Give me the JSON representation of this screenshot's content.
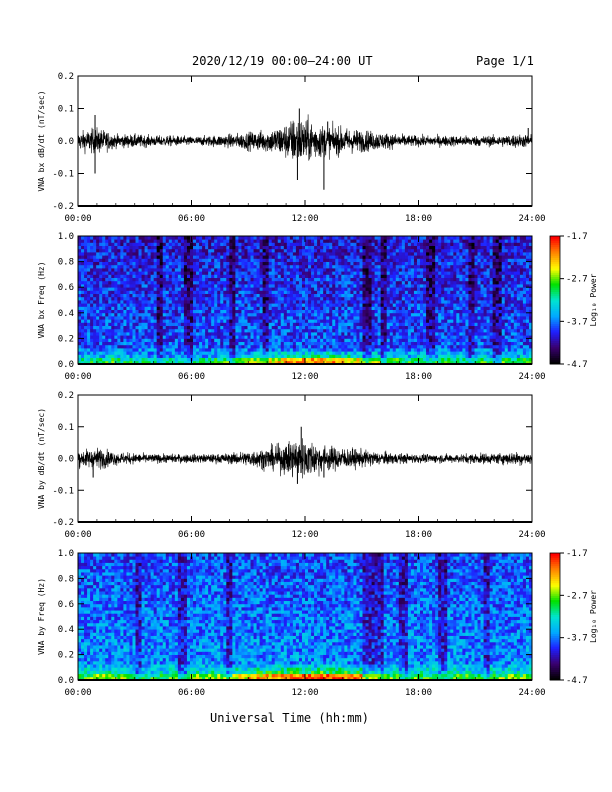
{
  "header": {
    "title": "2020/12/19  00:00–24:00 UT",
    "page": "Page 1/1"
  },
  "footer": {
    "xlabel": "Universal Time (hh:mm)"
  },
  "colors": {
    "trace": "#000000",
    "colormap": [
      "#000000",
      "#3a0070",
      "#1f1fff",
      "#00aaff",
      "#00e5d0",
      "#00e000",
      "#ffff00",
      "#ff8800",
      "#ff0000"
    ]
  },
  "chart_data": [
    {
      "type": "line",
      "name": "bx-waveform",
      "ylabel": "VNA bx dB/dt (nT/sec)",
      "xlim": [
        0,
        24
      ],
      "ylim": [
        -0.2,
        0.2
      ],
      "xticks": [
        "00:00",
        "06:00",
        "12:00",
        "18:00",
        "24:00"
      ],
      "yticks": [
        "-0.2",
        "-0.1",
        "0.0",
        "0.1",
        "0.2"
      ],
      "envelope_x_hours": [
        0,
        1,
        2,
        3,
        4,
        5,
        6,
        7,
        8,
        9,
        10,
        11,
        11.5,
        12,
        12.5,
        13,
        14,
        15,
        16,
        17,
        18,
        19,
        20,
        21,
        22,
        23,
        24
      ],
      "envelope_amplitude": [
        0.02,
        0.03,
        0.015,
        0.015,
        0.012,
        0.012,
        0.01,
        0.012,
        0.015,
        0.02,
        0.025,
        0.04,
        0.055,
        0.05,
        0.045,
        0.035,
        0.03,
        0.025,
        0.02,
        0.015,
        0.012,
        0.012,
        0.012,
        0.012,
        0.012,
        0.015,
        0.015
      ],
      "spikes": [
        {
          "x": 0.9,
          "y": 0.08
        },
        {
          "x": 0.9,
          "y": -0.1
        },
        {
          "x": 11.7,
          "y": 0.1
        },
        {
          "x": 11.6,
          "y": -0.12
        },
        {
          "x": 13.0,
          "y": -0.15
        },
        {
          "x": 13.2,
          "y": 0.06
        },
        {
          "x": 23.8,
          "y": 0.04
        }
      ]
    },
    {
      "type": "heatmap",
      "name": "bx-spectrogram",
      "ylabel": "VNA bx Freq (Hz)",
      "xlim": [
        0,
        24
      ],
      "ylim": [
        0.0,
        1.0
      ],
      "xticks": [
        "00:00",
        "06:00",
        "12:00",
        "18:00",
        "24:00"
      ],
      "yticks": [
        "0.0",
        "0.2",
        "0.4",
        "0.6",
        "0.8",
        "1.0"
      ],
      "colorbar": {
        "label": "Log₁₀ Power",
        "ticks": [
          "-1.7",
          "-2.7",
          "-3.7",
          "-4.7"
        ],
        "range": [
          -4.7,
          -1.7
        ]
      },
      "low_freq_power_by_hour": [
        -3.3,
        -3.2,
        -3.3,
        -3.4,
        -3.4,
        -3.4,
        -3.4,
        -3.2,
        -3.0,
        -2.8,
        -2.6,
        -2.4,
        -2.3,
        -2.4,
        -2.6,
        -2.8,
        -3.1,
        -3.2,
        -3.2,
        -3.2,
        -3.2,
        -3.2,
        -3.2,
        -3.2,
        -3.2
      ],
      "background_power": -3.8,
      "dark_bands_hours": [
        [
          4.1,
          4.5
        ],
        [
          5.6,
          6.0
        ],
        [
          8.0,
          8.3
        ],
        [
          9.8,
          10.1
        ],
        [
          15.0,
          15.6
        ],
        [
          16.0,
          16.3
        ],
        [
          18.4,
          18.8
        ],
        [
          20.6,
          21.0
        ],
        [
          22.0,
          22.4
        ]
      ]
    },
    {
      "type": "line",
      "name": "by-waveform",
      "ylabel": "VNA by dB/dt (nT/sec)",
      "xlim": [
        0,
        24
      ],
      "ylim": [
        -0.2,
        0.2
      ],
      "xticks": [
        "00:00",
        "06:00",
        "12:00",
        "18:00",
        "24:00"
      ],
      "yticks": [
        "-0.2",
        "-0.1",
        "0.0",
        "0.1",
        "0.2"
      ],
      "envelope_x_hours": [
        0,
        1,
        2,
        3,
        4,
        5,
        6,
        7,
        8,
        9,
        10,
        11,
        11.5,
        12,
        12.5,
        13,
        14,
        15,
        16,
        17,
        18,
        19,
        20,
        21,
        22,
        23,
        24
      ],
      "envelope_amplitude": [
        0.018,
        0.025,
        0.015,
        0.012,
        0.01,
        0.01,
        0.01,
        0.01,
        0.012,
        0.018,
        0.025,
        0.035,
        0.05,
        0.045,
        0.04,
        0.03,
        0.025,
        0.02,
        0.015,
        0.012,
        0.01,
        0.01,
        0.01,
        0.012,
        0.012,
        0.015,
        0.015
      ],
      "spikes": [
        {
          "x": 0.8,
          "y": -0.06
        },
        {
          "x": 11.8,
          "y": 0.1
        },
        {
          "x": 11.6,
          "y": -0.08
        },
        {
          "x": 13.0,
          "y": -0.06
        }
      ]
    },
    {
      "type": "heatmap",
      "name": "by-spectrogram",
      "ylabel": "VNA by Freq (Hz)",
      "xlim": [
        0,
        24
      ],
      "ylim": [
        0.0,
        1.0
      ],
      "xticks": [
        "00:00",
        "06:00",
        "12:00",
        "18:00",
        "24:00"
      ],
      "yticks": [
        "0.0",
        "0.2",
        "0.4",
        "0.6",
        "0.8",
        "1.0"
      ],
      "colorbar": {
        "label": "Log₁₀ Power",
        "ticks": [
          "-1.7",
          "-2.7",
          "-3.7",
          "-4.7"
        ],
        "range": [
          -4.7,
          -1.7
        ]
      },
      "low_freq_power_by_hour": [
        -3.0,
        -2.9,
        -3.0,
        -3.2,
        -3.2,
        -3.1,
        -3.0,
        -2.9,
        -2.7,
        -2.5,
        -2.4,
        -2.2,
        -2.1,
        -2.2,
        -2.3,
        -2.6,
        -3.0,
        -3.1,
        -3.1,
        -3.1,
        -3.1,
        -3.1,
        -3.0,
        -3.0,
        -3.0
      ],
      "background_power": -3.6,
      "dark_bands_hours": [
        [
          3.0,
          3.3
        ],
        [
          5.3,
          5.8
        ],
        [
          7.8,
          8.1
        ],
        [
          15.0,
          16.2
        ],
        [
          17.0,
          17.4
        ],
        [
          19.0,
          19.5
        ],
        [
          21.4,
          21.8
        ]
      ]
    }
  ]
}
